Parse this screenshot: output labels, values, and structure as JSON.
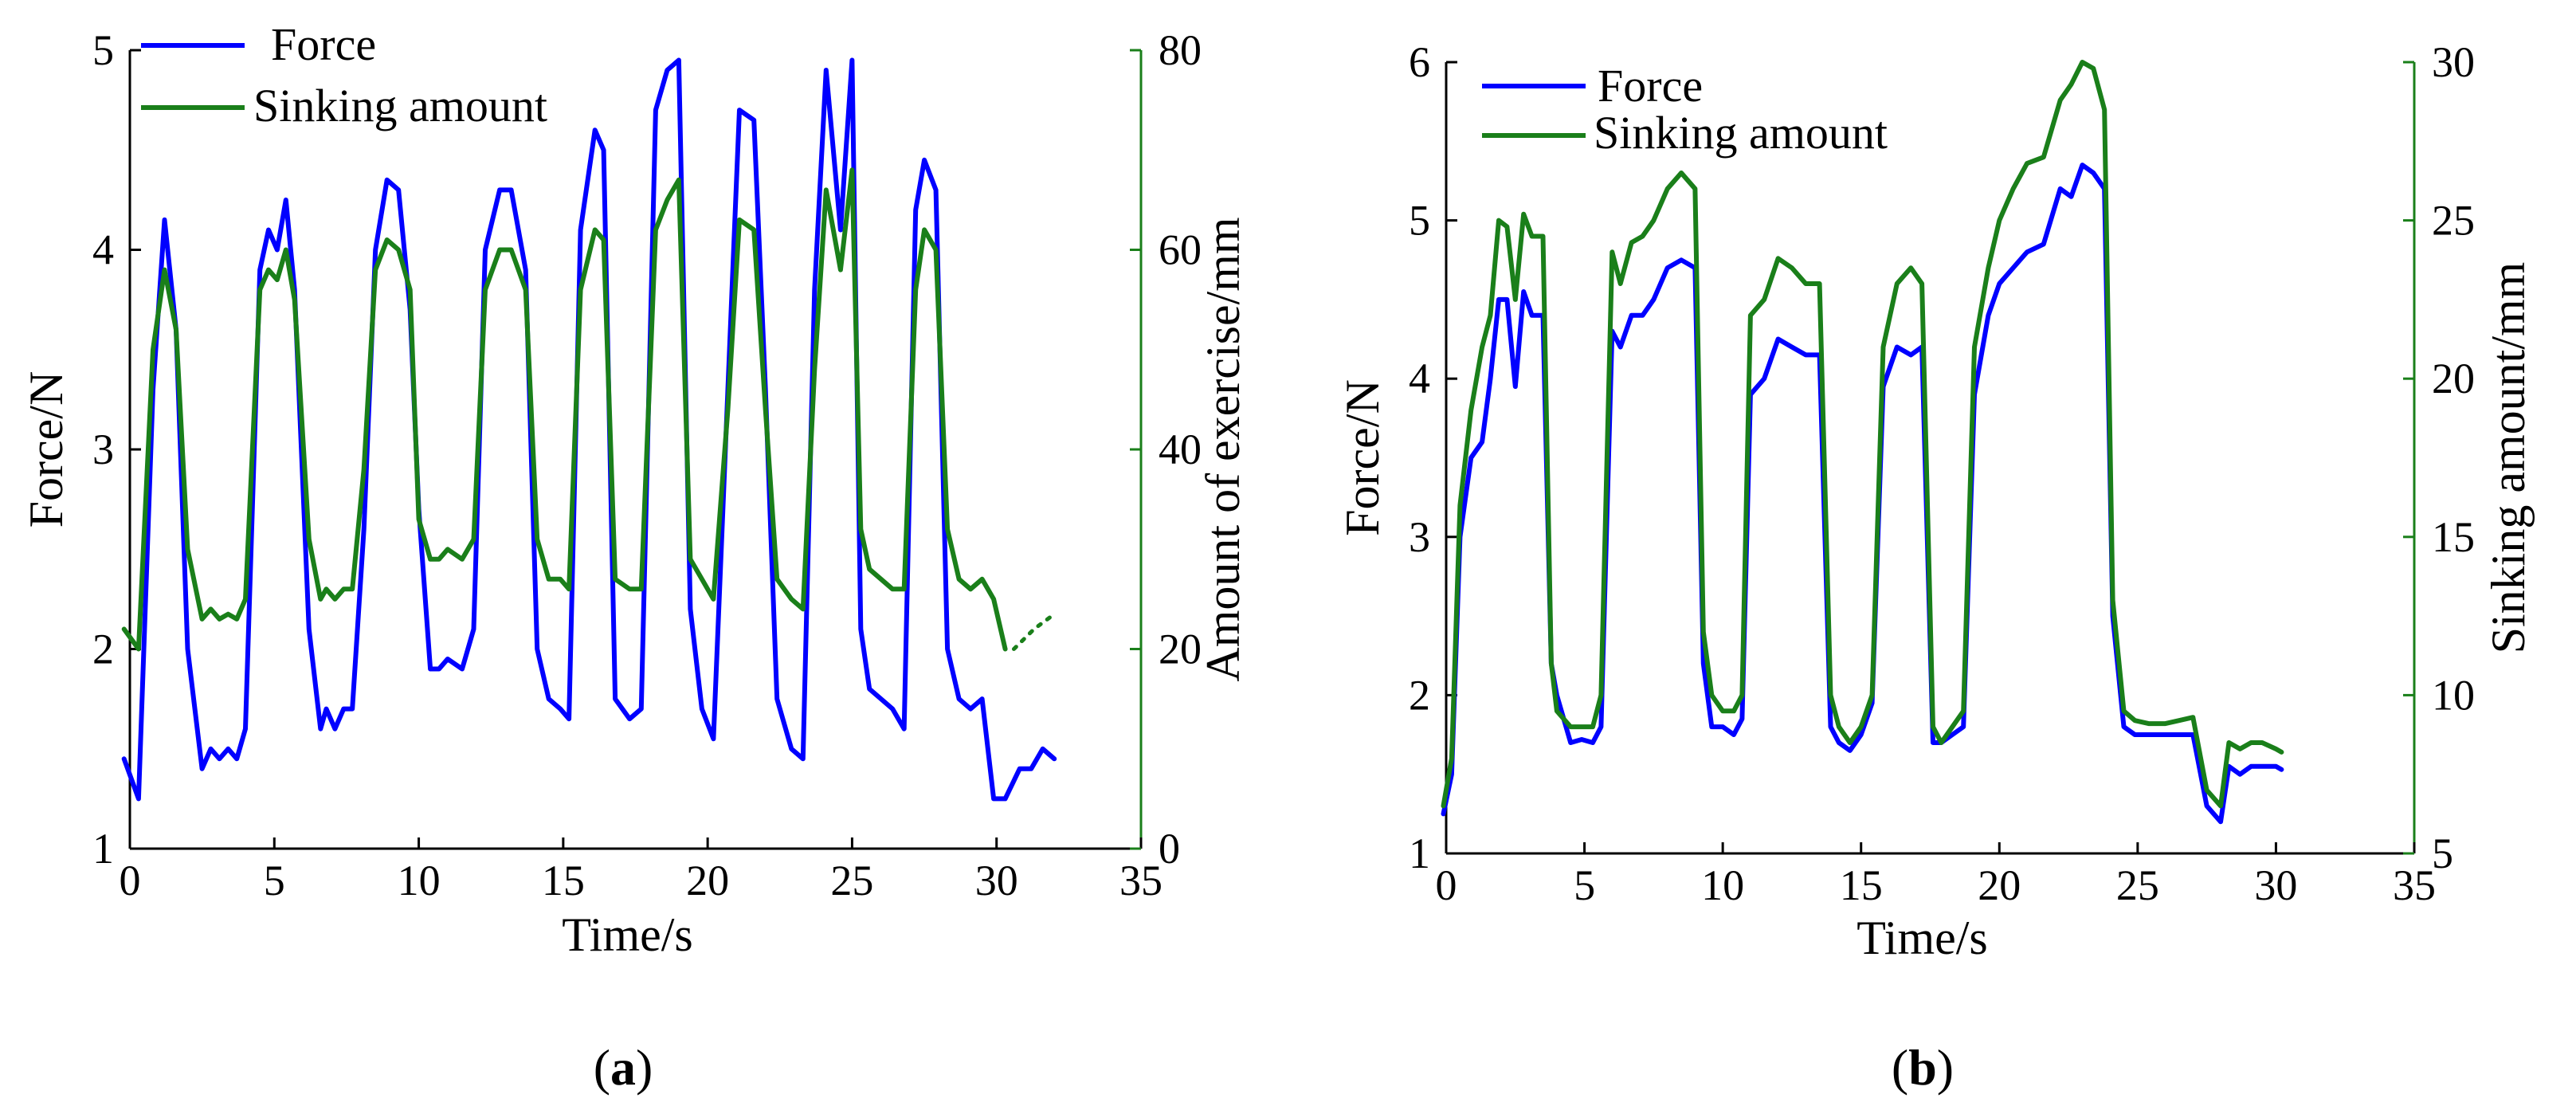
{
  "colors": {
    "force": "#0000ff",
    "sinking": "#1a7f1a",
    "axis": "#000000"
  },
  "chart_data": [
    {
      "type": "line",
      "panel_label": "(a)",
      "xlabel": "Time/s",
      "ylabel_left": "Force/N",
      "ylabel_right": "Amount of exercise/mm",
      "xlim": [
        0,
        35
      ],
      "ylim_left": [
        1,
        5
      ],
      "ylim_right": [
        0,
        80
      ],
      "xticks": [
        0,
        5,
        10,
        15,
        20,
        25,
        30,
        35
      ],
      "yticks_left": [
        1,
        2,
        3,
        4,
        5
      ],
      "yticks_right": [
        0,
        20,
        40,
        60,
        80
      ],
      "legend": [
        "Force",
        "Sinking amount"
      ],
      "series": [
        {
          "name": "Force",
          "axis": "left",
          "color": "#0000ff",
          "x": [
            -0.2,
            0.3,
            0.8,
            1.2,
            1.6,
            2.0,
            2.5,
            2.8,
            3.1,
            3.4,
            3.7,
            4.0,
            4.5,
            4.8,
            5.1,
            5.4,
            5.7,
            6.2,
            6.6,
            6.8,
            7.1,
            7.4,
            7.7,
            8.1,
            8.5,
            8.9,
            9.3,
            9.7,
            10.0,
            10.4,
            10.7,
            11.0,
            11.5,
            11.9,
            12.3,
            12.8,
            13.2,
            13.7,
            14.1,
            14.5,
            14.9,
            15.2,
            15.6,
            16.1,
            16.4,
            16.8,
            17.3,
            17.7,
            18.2,
            18.6,
            19.0,
            19.4,
            19.8,
            20.2,
            20.7,
            21.1,
            21.6,
            22.0,
            22.4,
            22.9,
            23.3,
            23.7,
            24.1,
            24.6,
            25.0,
            25.3,
            25.6,
            26.0,
            26.4,
            26.8,
            27.2,
            27.5,
            27.9,
            28.3,
            28.7,
            29.1,
            29.5,
            29.9,
            30.3,
            30.8,
            31.2,
            31.6,
            32.0
          ],
          "y": [
            1.45,
            1.25,
            3.3,
            4.15,
            3.6,
            2.0,
            1.4,
            1.5,
            1.45,
            1.5,
            1.45,
            1.6,
            3.9,
            4.1,
            4.0,
            4.25,
            3.8,
            2.1,
            1.6,
            1.7,
            1.6,
            1.7,
            1.7,
            2.6,
            4.0,
            4.35,
            4.3,
            3.7,
            2.7,
            1.9,
            1.9,
            1.95,
            1.9,
            2.1,
            4.0,
            4.3,
            4.3,
            3.9,
            2.0,
            1.75,
            1.7,
            1.65,
            4.1,
            4.6,
            4.5,
            1.75,
            1.65,
            1.7,
            4.7,
            4.9,
            4.95,
            2.2,
            1.7,
            1.55,
            3.3,
            4.7,
            4.65,
            3.3,
            1.75,
            1.5,
            1.45,
            3.8,
            4.9,
            4.1,
            4.95,
            2.1,
            1.8,
            1.75,
            1.7,
            1.6,
            4.2,
            4.45,
            4.3,
            2.0,
            1.75,
            1.7,
            1.75,
            1.25,
            1.25,
            1.4,
            1.4,
            1.5,
            1.45
          ]
        },
        {
          "name": "Sinking amount",
          "axis": "right",
          "color": "#1a7f1a",
          "x": [
            -0.2,
            0.3,
            0.8,
            1.2,
            1.6,
            2.0,
            2.5,
            2.8,
            3.1,
            3.4,
            3.7,
            4.0,
            4.5,
            4.8,
            5.1,
            5.4,
            5.7,
            6.2,
            6.6,
            6.8,
            7.1,
            7.4,
            7.7,
            8.1,
            8.5,
            8.9,
            9.3,
            9.7,
            10.0,
            10.4,
            10.7,
            11.0,
            11.5,
            11.9,
            12.3,
            12.8,
            13.2,
            13.7,
            14.1,
            14.5,
            14.9,
            15.2,
            15.6,
            16.1,
            16.4,
            16.8,
            17.3,
            17.7,
            18.2,
            18.6,
            19.0,
            19.4,
            19.8,
            20.2,
            20.7,
            21.1,
            21.6,
            22.0,
            22.4,
            22.9,
            23.3,
            23.7,
            24.1,
            24.6,
            25.0,
            25.3,
            25.6,
            26.0,
            26.4,
            26.8,
            27.2,
            27.5,
            27.9,
            28.3,
            28.7,
            29.1,
            29.5,
            29.9,
            30.3
          ],
          "y": [
            22,
            20,
            50,
            58,
            52,
            30,
            23,
            24,
            23,
            23.5,
            23,
            25,
            56,
            58,
            57,
            60,
            55,
            31,
            25,
            26,
            25,
            26,
            26,
            38,
            58,
            61,
            60,
            56,
            33,
            29,
            29,
            30,
            29,
            31,
            56,
            60,
            60,
            56,
            31,
            27,
            27,
            26,
            56,
            62,
            61,
            27,
            26,
            26,
            62,
            65,
            67,
            29,
            27,
            25,
            44,
            63,
            62,
            44,
            27,
            25,
            24,
            48,
            66,
            58,
            68,
            32,
            28,
            27,
            26,
            26,
            56,
            62,
            60,
            32,
            27,
            26,
            27,
            25,
            20
          ]
        }
      ]
    },
    {
      "type": "line",
      "panel_label": "(b)",
      "xlabel": "Time/s",
      "ylabel_left": "Force/N",
      "ylabel_right": "Sinking amount/mm",
      "xlim": [
        0,
        35
      ],
      "ylim_left": [
        1,
        6
      ],
      "ylim_right": [
        5,
        30
      ],
      "xticks": [
        0,
        5,
        10,
        15,
        20,
        25,
        30,
        35
      ],
      "yticks_left": [
        1,
        2,
        3,
        4,
        5,
        6
      ],
      "yticks_right": [
        5,
        10,
        15,
        20,
        25,
        30
      ],
      "legend": [
        "Force",
        "Sinking amount"
      ],
      "series": [
        {
          "name": "Force",
          "axis": "left",
          "color": "#0000ff",
          "x": [
            -0.1,
            0.2,
            0.5,
            0.9,
            1.3,
            1.6,
            1.9,
            2.2,
            2.5,
            2.8,
            3.1,
            3.5,
            3.8,
            4.0,
            4.5,
            4.9,
            5.3,
            5.6,
            6.0,
            6.3,
            6.7,
            7.1,
            7.5,
            8.0,
            8.5,
            9.0,
            9.3,
            9.6,
            10.0,
            10.4,
            10.7,
            11.0,
            11.5,
            12.0,
            12.5,
            13.0,
            13.5,
            13.9,
            14.2,
            14.6,
            15.0,
            15.4,
            15.8,
            16.3,
            16.8,
            17.2,
            17.6,
            17.9,
            18.3,
            18.7,
            19.1,
            19.6,
            20.0,
            20.5,
            21.0,
            21.6,
            22.2,
            22.6,
            23.0,
            23.4,
            23.8,
            24.1,
            24.5,
            24.9,
            25.4,
            26.0,
            26.5,
            27.0,
            27.5,
            28.0,
            28.3,
            28.7,
            29.1,
            29.5,
            30.0,
            30.2
          ],
          "y": [
            1.25,
            1.5,
            3.0,
            3.5,
            3.6,
            4.0,
            4.5,
            4.5,
            3.95,
            4.55,
            4.4,
            4.4,
            2.2,
            2.0,
            1.7,
            1.72,
            1.7,
            1.8,
            4.3,
            4.2,
            4.4,
            4.4,
            4.5,
            4.7,
            4.75,
            4.7,
            2.2,
            1.8,
            1.8,
            1.75,
            1.85,
            3.9,
            4.0,
            4.25,
            4.2,
            4.15,
            4.15,
            1.8,
            1.7,
            1.65,
            1.75,
            1.95,
            3.95,
            4.2,
            4.15,
            4.2,
            1.7,
            1.7,
            1.75,
            1.8,
            3.9,
            4.4,
            4.6,
            4.7,
            4.8,
            4.85,
            5.2,
            5.15,
            5.35,
            5.3,
            5.2,
            2.5,
            1.8,
            1.75,
            1.75,
            1.75,
            1.75,
            1.75,
            1.3,
            1.2,
            1.55,
            1.5,
            1.55,
            1.55,
            1.55,
            1.53
          ]
        },
        {
          "name": "Sinking amount",
          "axis": "right",
          "color": "#1a7f1a",
          "x": [
            -0.1,
            0.2,
            0.5,
            0.9,
            1.3,
            1.6,
            1.9,
            2.2,
            2.5,
            2.8,
            3.1,
            3.5,
            3.8,
            4.0,
            4.5,
            4.9,
            5.3,
            5.6,
            6.0,
            6.3,
            6.7,
            7.1,
            7.5,
            8.0,
            8.5,
            9.0,
            9.3,
            9.6,
            10.0,
            10.4,
            10.7,
            11.0,
            11.5,
            12.0,
            12.5,
            13.0,
            13.5,
            13.9,
            14.2,
            14.6,
            15.0,
            15.4,
            15.8,
            16.3,
            16.8,
            17.2,
            17.6,
            17.9,
            18.3,
            18.7,
            19.1,
            19.6,
            20.0,
            20.5,
            21.0,
            21.6,
            22.2,
            22.6,
            23.0,
            23.4,
            23.8,
            24.1,
            24.5,
            24.9,
            25.4,
            26.0,
            26.5,
            27.0,
            27.5,
            28.0,
            28.3,
            28.7,
            29.1,
            29.5,
            30.0,
            30.2
          ],
          "y": [
            6.5,
            8,
            16,
            19,
            21,
            22,
            25,
            24.8,
            22.5,
            25.2,
            24.5,
            24.5,
            11,
            9.5,
            9,
            9,
            9,
            10,
            24,
            23,
            24.3,
            24.5,
            25,
            26,
            26.5,
            26,
            12,
            10,
            9.5,
            9.5,
            10,
            22,
            22.5,
            23.8,
            23.5,
            23,
            23,
            10,
            9,
            8.5,
            9,
            10,
            21,
            23,
            23.5,
            23,
            9,
            8.5,
            9,
            9.5,
            21,
            23.5,
            25,
            26,
            26.8,
            27,
            28.8,
            29.3,
            30,
            29.8,
            28.5,
            13,
            9.5,
            9.2,
            9.1,
            9.1,
            9.2,
            9.3,
            7,
            6.5,
            8.5,
            8.3,
            8.5,
            8.5,
            8.3,
            8.2
          ]
        }
      ]
    }
  ]
}
